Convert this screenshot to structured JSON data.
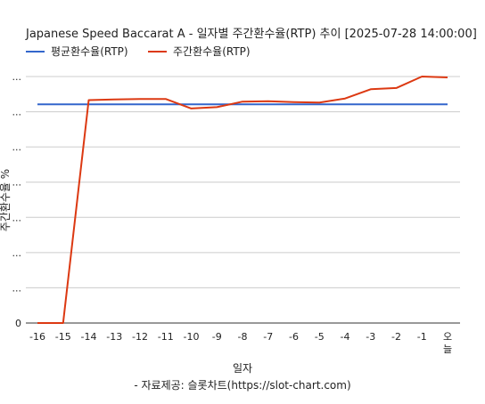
{
  "chart_data": {
    "type": "line",
    "title": "Japanese Speed Baccarat A - 일자별 주간환수율(RTP) 추이 [2025-07-28 14:00:00]",
    "xlabel": "일자",
    "ylabel": "주간환수율 %",
    "source": "- 자료제공: 슬롯차트(https://slot-chart.com)",
    "categories": [
      "-16",
      "-15",
      "-14",
      "-13",
      "-12",
      "-11",
      "-10",
      "-9",
      "-8",
      "-7",
      "-6",
      "-5",
      "-4",
      "-3",
      "-2",
      "-1",
      "오늘"
    ],
    "y_tick_labels": [
      "0",
      "...",
      "...",
      "...",
      "...",
      "...",
      "...",
      "..."
    ],
    "ylim": [
      0,
      112
    ],
    "grid": true,
    "legend_position": "top-left",
    "series": [
      {
        "name": "평균환수율(RTP)",
        "color": "#3366cc",
        "values": [
          99.4,
          99.4,
          99.4,
          99.4,
          99.4,
          99.4,
          99.4,
          99.4,
          99.4,
          99.4,
          99.4,
          99.4,
          99.4,
          99.4,
          99.4,
          99.4,
          99.4
        ]
      },
      {
        "name": "주간환수율(RTP)",
        "color": "#dc3912",
        "values": [
          0,
          0,
          101.3,
          101.6,
          101.8,
          101.8,
          97.5,
          98.1,
          100.6,
          100.8,
          100.4,
          100.2,
          102.0,
          106.2,
          106.8,
          112.0,
          111.6
        ]
      }
    ]
  }
}
